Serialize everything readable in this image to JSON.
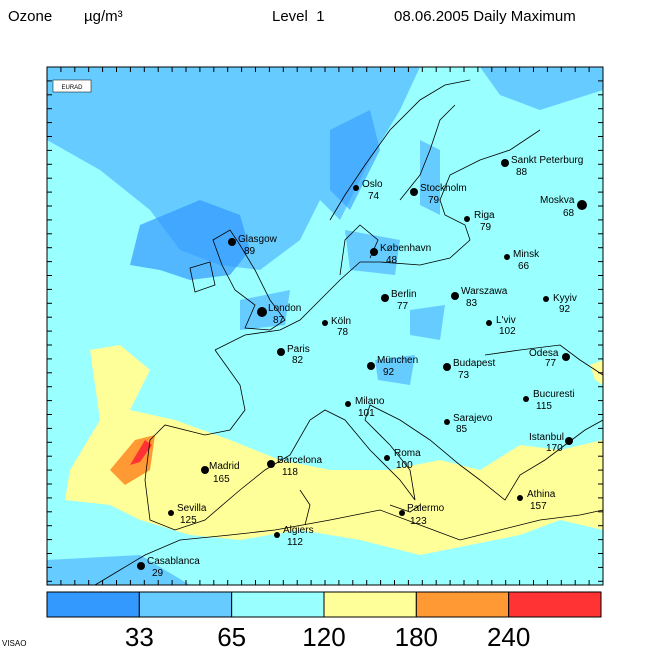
{
  "header": {
    "title": "Ozone",
    "unit": "µg/m³",
    "level": "Level  1",
    "date": "08.06.2005 Daily Maximum"
  },
  "logo": "EURAD",
  "cities": [
    {
      "name": "Oslo",
      "value": 74
    },
    {
      "name": "Stockholm",
      "value": 79
    },
    {
      "name": "Sankt Peterburg",
      "value": 88
    },
    {
      "name": "Riga",
      "value": 79
    },
    {
      "name": "Moskva",
      "value": 68
    },
    {
      "name": "Glasgow",
      "value": 89
    },
    {
      "name": "København",
      "value": 48
    },
    {
      "name": "Minsk",
      "value": 66
    },
    {
      "name": "Berlin",
      "value": 77
    },
    {
      "name": "Warszawa",
      "value": 83
    },
    {
      "name": "Kyyiv",
      "value": 92
    },
    {
      "name": "London",
      "value": 87
    },
    {
      "name": "Köln",
      "value": 78
    },
    {
      "name": "L'viv",
      "value": 102
    },
    {
      "name": "Paris",
      "value": 82
    },
    {
      "name": "München",
      "value": 92
    },
    {
      "name": "Budapest",
      "value": 73
    },
    {
      "name": "Odesa",
      "value": 77
    },
    {
      "name": "Milano",
      "value": 101
    },
    {
      "name": "Bucuresti",
      "value": 115
    },
    {
      "name": "Sarajevo",
      "value": 85
    },
    {
      "name": "Istanbul",
      "value": 170
    },
    {
      "name": "Madrid",
      "value": 165
    },
    {
      "name": "Barcelona",
      "value": 118
    },
    {
      "name": "Roma",
      "value": 100
    },
    {
      "name": "Athina",
      "value": 157
    },
    {
      "name": "Sevilla",
      "value": 125
    },
    {
      "name": "Palermo",
      "value": 123
    },
    {
      "name": "Algiers",
      "value": 112
    },
    {
      "name": "Casablanca",
      "value": 29
    }
  ],
  "legend": {
    "thresholds": [
      33,
      65,
      120,
      180,
      240
    ],
    "colors": [
      "#3399ff",
      "#66ccff",
      "#99ffff",
      "#ffff99",
      "#ff9933",
      "#ff3333"
    ]
  },
  "footer": "VISAO"
}
